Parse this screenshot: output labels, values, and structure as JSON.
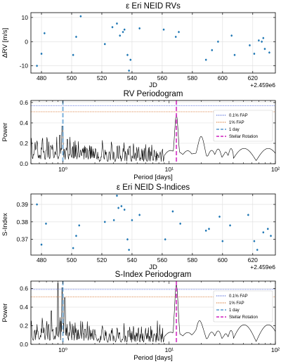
{
  "chart_data": [
    {
      "type": "scatter",
      "title": "ε Eri NEID RVs",
      "xlabel": "JD",
      "ylabel": "ΔRV [m/s]",
      "offset_label": "+2.459e6",
      "xlim": [
        473,
        635
      ],
      "ylim": [
        -13,
        12
      ],
      "xticks": [
        480,
        500,
        520,
        540,
        560,
        580,
        600,
        620
      ],
      "yticks": [
        -10,
        0,
        10
      ],
      "grid": true,
      "marker_color": "#1f77b4",
      "series": [
        {
          "x": [
            477,
            480,
            482,
            501,
            503,
            506,
            522,
            527,
            530,
            532,
            534,
            535,
            537,
            538,
            539,
            545,
            561,
            569,
            571,
            589,
            593,
            597,
            606,
            608,
            618,
            621,
            624,
            626,
            627,
            628,
            631
          ],
          "y": [
            -10,
            -5,
            3.5,
            -5.5,
            2,
            10.5,
            -1,
            6,
            7.5,
            2.5,
            4,
            5,
            -5.5,
            -12,
            -7.5,
            5.5,
            5,
            2,
            4,
            -7.5,
            -3.5,
            0,
            2.5,
            -5.5,
            -1.5,
            -5,
            0.5,
            0,
            1.5,
            -3,
            -4.5
          ]
        }
      ]
    },
    {
      "type": "line",
      "title": "RV Periodogram",
      "xlabel": "Period [days]",
      "ylabel": "Power",
      "xscale": "log",
      "xlim": [
        0.5,
        100
      ],
      "ylim": [
        0,
        0.62
      ],
      "yticks": [
        0.0,
        0.2,
        0.4,
        0.6
      ],
      "ytick_labels": [
        "0.0",
        "0.2",
        "0.4",
        "0.6"
      ],
      "xtick_labels": [
        "10⁰",
        "10¹",
        "10²"
      ],
      "legend_position": "right",
      "fap_01": 0.57,
      "fap_1": 0.51,
      "one_day": 1.0,
      "stellar_rotation": 11.7,
      "peak_period": 11.7,
      "peak_power": 0.48,
      "series": [
        {
          "name": "0.1% FAP",
          "color": "#3a55d6",
          "style": "dotted"
        },
        {
          "name": "1% FAP",
          "color": "#d2691e",
          "style": "dotted"
        },
        {
          "name": "1 day",
          "color": "#6fa8d6",
          "style": "dashed"
        },
        {
          "name": "Stellar Rotation",
          "color": "#d63fc7",
          "style": "dashed"
        }
      ]
    },
    {
      "type": "scatter",
      "title": "ε Eri NEID S-Indices",
      "xlabel": "JD",
      "ylabel": "S-Index",
      "offset_label": "+2.459e6",
      "xlim": [
        473,
        635
      ],
      "ylim": [
        0.361,
        0.396
      ],
      "xticks": [
        480,
        500,
        520,
        540,
        560,
        580,
        600,
        620
      ],
      "xtick_labels": [
        "480",
        "500",
        "520",
        "540",
        "560",
        "580",
        "600",
        "620"
      ],
      "yticks": [
        0.37,
        0.38,
        0.39
      ],
      "ytick_labels": [
        "0.37",
        "0.38",
        "0.39"
      ],
      "grid": true,
      "marker_color": "#1f77b4",
      "series": [
        {
          "x": [
            477,
            480,
            483,
            501,
            503,
            505,
            522,
            528,
            530,
            531,
            533,
            535,
            537,
            538,
            540,
            545,
            562,
            567,
            572,
            589,
            591,
            598,
            600,
            605,
            617,
            621,
            623,
            627,
            630,
            632
          ],
          "y": [
            0.39,
            0.367,
            0.379,
            0.365,
            0.372,
            0.378,
            0.38,
            0.381,
            0.395,
            0.388,
            0.389,
            0.387,
            0.37,
            0.364,
            0.381,
            0.384,
            0.37,
            0.386,
            0.379,
            0.375,
            0.376,
            0.383,
            0.369,
            0.378,
            0.384,
            0.369,
            0.364,
            0.374,
            0.376,
            0.372
          ]
        }
      ]
    },
    {
      "type": "line",
      "title": "S-Index Periodogram",
      "xlabel": "Period [days]",
      "ylabel": "Power",
      "xscale": "log",
      "xlim": [
        0.5,
        100
      ],
      "ylim": [
        0,
        0.68
      ],
      "yticks": [
        0.0,
        0.2,
        0.4,
        0.6
      ],
      "ytick_labels": [
        "0.0",
        "0.2",
        "0.4",
        "0.6"
      ],
      "xtick_labels": [
        "10⁰",
        "10¹",
        "10²"
      ],
      "legend_position": "right",
      "fap_01": 0.59,
      "fap_1": 0.51,
      "one_day": 1.0,
      "stellar_rotation": 11.7,
      "peak_period": 11.7,
      "peak_power": 0.64,
      "series": [
        {
          "name": "0.1% FAP",
          "color": "#3a55d6",
          "style": "dotted"
        },
        {
          "name": "1% FAP",
          "color": "#d2691e",
          "style": "dotted"
        },
        {
          "name": "1 day",
          "color": "#6fa8d6",
          "style": "dashed"
        },
        {
          "name": "Stellar Rotation",
          "color": "#d63fc7",
          "style": "dashed"
        }
      ]
    }
  ]
}
